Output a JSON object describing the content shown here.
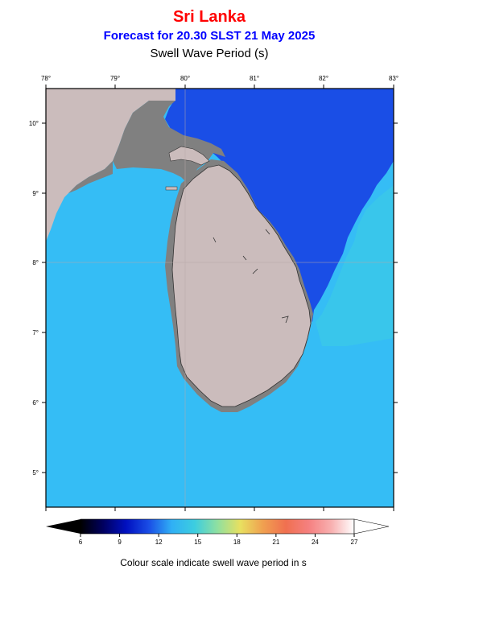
{
  "header": {
    "region": "Sri Lanka",
    "forecast": "Forecast for  20.30 SLST 21 May 2025",
    "variable": "Swell Wave Period (s)"
  },
  "map": {
    "lon_labels": [
      "78°",
      "79°",
      "80°",
      "81°",
      "82°",
      "83°"
    ],
    "lat_labels": [
      "10°",
      "9°",
      "8°",
      "7°",
      "6°",
      "5°"
    ],
    "colors": {
      "land": "#cbbcbc",
      "coastal_shelf": "#808080",
      "sea_offshore": "#1a4ee6",
      "sea_inshore": "#35bdf5",
      "sea_transition": "#39c6eb",
      "coastline": "#333333"
    }
  },
  "colorbar": {
    "labels": [
      "6",
      "9",
      "12",
      "15",
      "18",
      "21",
      "24",
      "27"
    ],
    "stops": [
      "#000000",
      "#000060",
      "#0010c0",
      "#1a4ee6",
      "#30b0f5",
      "#3ccde0",
      "#8fe0a0",
      "#e8e060",
      "#f0a050",
      "#f07050",
      "#f58080",
      "#f8b0b0",
      "#ffffff"
    ],
    "caption": "Colour scale indicate swell wave period in s"
  }
}
